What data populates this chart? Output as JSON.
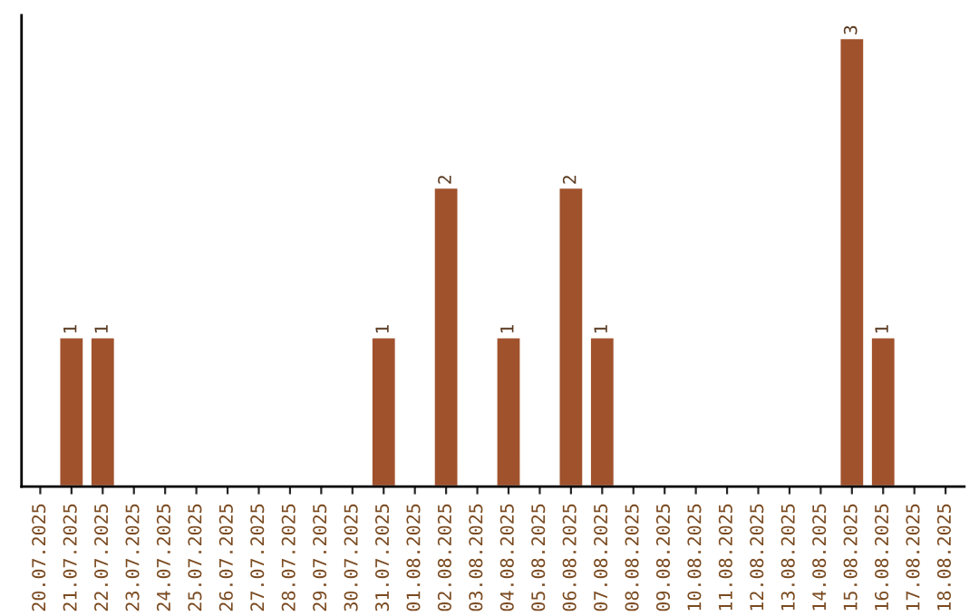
{
  "chart_data": {
    "type": "bar",
    "categories": [
      "20.07.2025",
      "21.07.2025",
      "22.07.2025",
      "23.07.2025",
      "24.07.2025",
      "25.07.2025",
      "26.07.2025",
      "27.07.2025",
      "28.07.2025",
      "29.07.2025",
      "30.07.2025",
      "31.07.2025",
      "01.08.2025",
      "02.08.2025",
      "03.08.2025",
      "04.08.2025",
      "05.08.2025",
      "06.08.2025",
      "07.08.2025",
      "08.08.2025",
      "09.08.2025",
      "10.08.2025",
      "11.08.2025",
      "12.08.2025",
      "13.08.2025",
      "14.08.2025",
      "15.08.2025",
      "16.08.2025",
      "17.08.2025",
      "18.08.2025"
    ],
    "values": [
      null,
      1,
      1,
      null,
      null,
      null,
      null,
      null,
      null,
      null,
      null,
      1,
      null,
      2,
      null,
      1,
      null,
      2,
      1,
      null,
      null,
      null,
      null,
      null,
      null,
      null,
      3,
      1,
      null,
      null
    ],
    "color": "#a0522d",
    "tick_labels": "x",
    "data_labels": true,
    "grid": false,
    "legend": false
  }
}
